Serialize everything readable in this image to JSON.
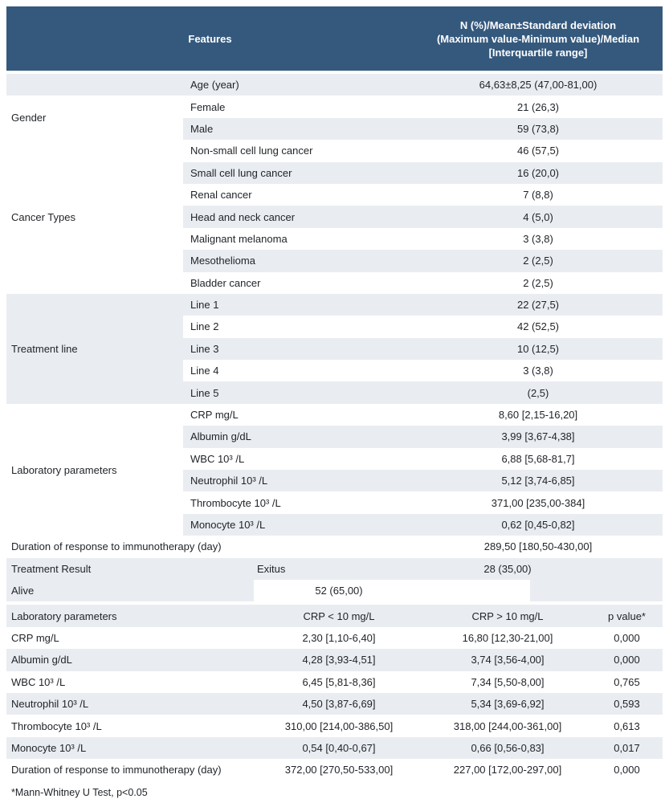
{
  "header": {
    "features": "Features",
    "stats_lines": [
      "N (%)/Mean±Standard deviation",
      "(Maximum value-Minimum value)/Median",
      "[Interquartile range]"
    ]
  },
  "age_row": {
    "label": "Age (year)",
    "value": "64,63±8,25 (47,00-81,00)"
  },
  "groups": [
    {
      "category": "Gender",
      "items": [
        {
          "label": "Female",
          "value": "21 (26,3)"
        },
        {
          "label": "Male",
          "value": "59 (73,8)"
        }
      ]
    },
    {
      "category": "Cancer Types",
      "items": [
        {
          "label": "Non-small cell lung cancer",
          "value": "46 (57,5)"
        },
        {
          "label": "Small cell lung cancer",
          "value": "16 (20,0)"
        },
        {
          "label": "Renal cancer",
          "value": "7 (8,8)"
        },
        {
          "label": "Head and neck cancer",
          "value": "4 (5,0)"
        },
        {
          "label": "Malignant melanoma",
          "value": "3 (3,8)"
        },
        {
          "label": "Mesothelioma",
          "value": "2 (2,5)"
        },
        {
          "label": "Bladder cancer",
          "value": "2 (2,5)"
        }
      ]
    },
    {
      "category": "Treatment line",
      "items": [
        {
          "label": "Line 1",
          "value": "22 (27,5)"
        },
        {
          "label": "Line 2",
          "value": "42 (52,5)"
        },
        {
          "label": "Line 3",
          "value": "10 (12,5)"
        },
        {
          "label": "Line 4",
          "value": "3 (3,8)"
        },
        {
          "label": "Line 5",
          "value": "(2,5)"
        }
      ]
    },
    {
      "category": "Laboratory parameters",
      "items": [
        {
          "label": "CRP mg/L",
          "value": "8,60 [2,15-16,20]"
        },
        {
          "label": "Albumin g/dL",
          "value": "3,99 [3,67-4,38]"
        },
        {
          "label": "WBC 10³ /L",
          "value": "6,88 [5,68-81,7]"
        },
        {
          "label": "Neutrophil 10³ /L",
          "value": "5,12 [3,74-6,85]"
        },
        {
          "label": "Thrombocyte 10³ /L",
          "value": "371,00 [235,00-384]"
        },
        {
          "label": "Monocyte 10³ /L",
          "value": "0,62 [0,45-0,82]"
        }
      ]
    }
  ],
  "duration_row": {
    "label": "Duration of response to immunotherapy (day)",
    "value": "289,50 [180,50-430,00]"
  },
  "treatment_result": {
    "category": "Treatment Result",
    "exitus": {
      "label": "Exitus",
      "value": "28 (35,00)"
    },
    "alive": {
      "label": "Alive",
      "value": "52 (65,00)"
    }
  },
  "crp_table": {
    "headers": {
      "col1": "Laboratory parameters",
      "col2": "CRP < 10 mg/L",
      "col3": "CRP > 10 mg/L",
      "col4": "p value*"
    },
    "rows": [
      {
        "label": "CRP mg/L",
        "crp_low": "2,30 [1,10-6,40]",
        "crp_high": "16,80 [12,30-21,00]",
        "p": "0,000"
      },
      {
        "label": "Albumin g/dL",
        "crp_low": "4,28 [3,93-4,51]",
        "crp_high": "3,74 [3,56-4,00]",
        "p": "0,000"
      },
      {
        "label": "WBC 10³ /L",
        "crp_low": "6,45 [5,81-8,36]",
        "crp_high": "7,34 [5,50-8,00]",
        "p": "0,765"
      },
      {
        "label": "Neutrophil 10³ /L",
        "crp_low": "4,50 [3,87-6,69]",
        "crp_high": "5,34 [3,69-6,92]",
        "p": "0,593"
      },
      {
        "label": "Thrombocyte 10³ /L",
        "crp_low": "310,00 [214,00-386,50]",
        "crp_high": "318,00 [244,00-361,00]",
        "p": "0,613"
      },
      {
        "label": "Monocyte 10³ /L",
        "crp_low": "0,54 [0,40-0,67]",
        "crp_high": "0,66 [0,56-0,83]",
        "p": "0,017"
      },
      {
        "label": "Duration of response to immunotherapy (day)",
        "crp_low": "372,00 [270,50-533,00]",
        "crp_high": "227,00 [172,00-297,00]",
        "p": "0,000"
      }
    ]
  },
  "footnote": "*Mann-Whitney U Test, p<0.05",
  "colors": {
    "header_bg": "#35597d",
    "header_text": "#ffffff",
    "row_alt_bg": "#e9edf1",
    "body_text": "#1f2328"
  }
}
